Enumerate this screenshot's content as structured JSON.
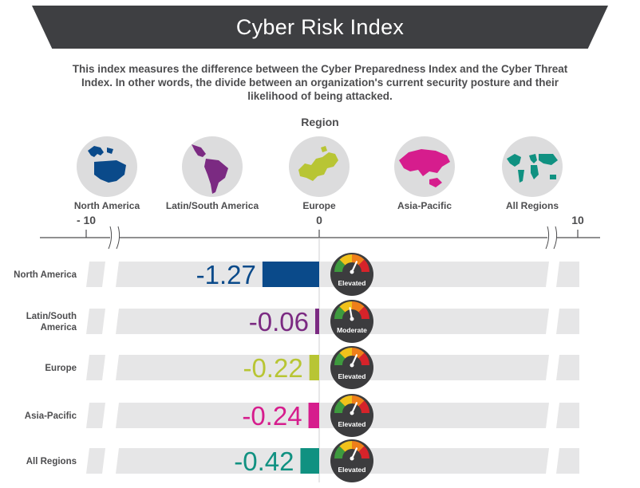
{
  "title": "Cyber Risk Index",
  "description": "This index measures the difference between the Cyber Preparedness Index and the Cyber Threat Index. In other words, the divide between an organization's current security posture and their likelihood of being attacked.",
  "region_header": "Region",
  "regions": [
    {
      "label": "North America",
      "icon": "north-america-map-icon",
      "color": "#0a4a8a"
    },
    {
      "label": "Latin/South America",
      "icon": "south-america-map-icon",
      "color": "#7b2a82"
    },
    {
      "label": "Europe",
      "icon": "europe-map-icon",
      "color": "#b8c534"
    },
    {
      "label": "Asia-Pacific",
      "icon": "asia-pacific-map-icon",
      "color": "#d61d8d"
    },
    {
      "label": "All Regions",
      "icon": "world-map-icon",
      "color": "#109181"
    }
  ],
  "chart_data": {
    "type": "bar",
    "orientation": "horizontal",
    "xlim": [
      -10,
      10
    ],
    "x_ticks": [
      "- 10",
      "0",
      "10"
    ],
    "axis_breaks": true,
    "categories": [
      "North America",
      "Latin/South America",
      "Europe",
      "Asia-Pacific",
      "All Regions"
    ],
    "values": [
      -1.27,
      -0.06,
      -0.22,
      -0.24,
      -0.42
    ],
    "value_labels": [
      "-1.27",
      "-0.06",
      "-0.22",
      "-0.24",
      "-0.42"
    ],
    "colors": [
      "#0a4a8a",
      "#7b2a82",
      "#b8c534",
      "#d61d8d",
      "#109181"
    ],
    "risk_levels": [
      "Elevated",
      "Moderate",
      "Elevated",
      "Elevated",
      "Elevated"
    ],
    "grid": false
  },
  "colors": {
    "banner": "#3e3f42",
    "track": "#e6e6e7",
    "text": "#4d4d4f",
    "gauge_green": "#3e9a3e",
    "gauge_yellow": "#f1c21b",
    "gauge_orange": "#ef7f1a",
    "gauge_red": "#d6232a"
  }
}
